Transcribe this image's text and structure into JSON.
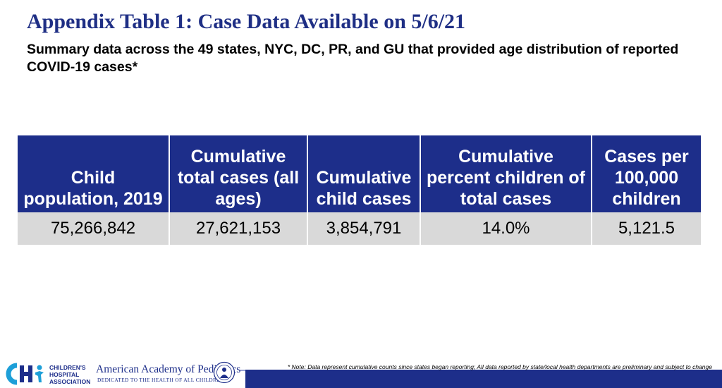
{
  "title": "Appendix Table 1: Case Data Available on 5/6/21",
  "subtitle": "Summary data across the 49 states, NYC, DC, PR, and GU that provided age distribution of reported COVID-19 cases*",
  "table": {
    "headers": [
      "Child population, 2019",
      "Cumulative total cases (all ages)",
      "Cumulative child cases",
      "Cumulative percent children of total cases",
      "Cases per 100,000 children"
    ],
    "row": [
      "75,266,842",
      "27,621,153",
      "3,854,791",
      "14.0%",
      "5,121.5"
    ]
  },
  "footer": {
    "note": "* Note: Data represent cumulative counts since states began reporting; All data reported by state/local health departments are preliminary and subject to change",
    "cha_logo": {
      "line1": "CHILDREN'S",
      "line2": "HOSPITAL",
      "line3": "ASSOCIATION"
    },
    "aap_logo": {
      "name": "American Academy of Pediatrics",
      "tagline": "DEDICATED TO THE HEALTH OF ALL CHILDREN®"
    }
  },
  "colors": {
    "title": "#1f2f85",
    "header_bg": "#1d2e8a",
    "row_bg": "#d9d9d9"
  }
}
